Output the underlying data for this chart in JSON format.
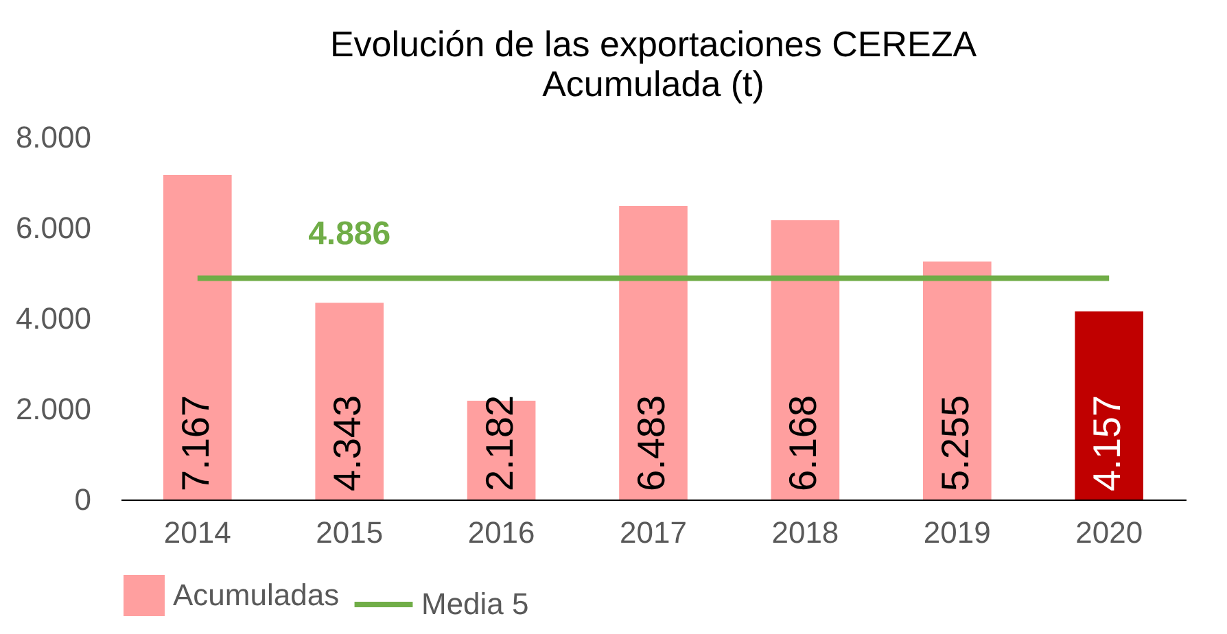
{
  "chart_data": {
    "type": "bar",
    "title": "Evolución de las exportaciones CEREZA",
    "subtitle": "Acumulada (t)",
    "categories": [
      "2014",
      "2015",
      "2016",
      "2017",
      "2018",
      "2019",
      "2020"
    ],
    "series": [
      {
        "name": "Acumuladas",
        "color": "#ff9f9f",
        "colors": [
          "#ff9f9f",
          "#ff9f9f",
          "#ff9f9f",
          "#ff9f9f",
          "#ff9f9f",
          "#ff9f9f",
          "#c00000"
        ],
        "values": [
          7167,
          4343,
          2182,
          6483,
          6168,
          5255,
          4157
        ],
        "value_labels": [
          "7.167",
          "4.343",
          "2.182",
          "6.483",
          "6.168",
          "5.255",
          "4.157"
        ]
      },
      {
        "name": "Media 5",
        "type": "line",
        "color": "#70ad47",
        "values": [
          4886,
          4886,
          4886,
          4886,
          4886,
          4886,
          4886
        ],
        "value_labels": [
          null,
          "4.886",
          null,
          null,
          null,
          null,
          null
        ]
      }
    ],
    "ylim": [
      0,
      8000
    ],
    "yticks": [
      {
        "value": 0,
        "label": "0"
      },
      {
        "value": 2000,
        "label": "2.000"
      },
      {
        "value": 4000,
        "label": "4.000"
      },
      {
        "value": 6000,
        "label": "6.000"
      },
      {
        "value": 8000,
        "label": "8.000"
      }
    ],
    "grid": false,
    "legend": "bottom"
  }
}
